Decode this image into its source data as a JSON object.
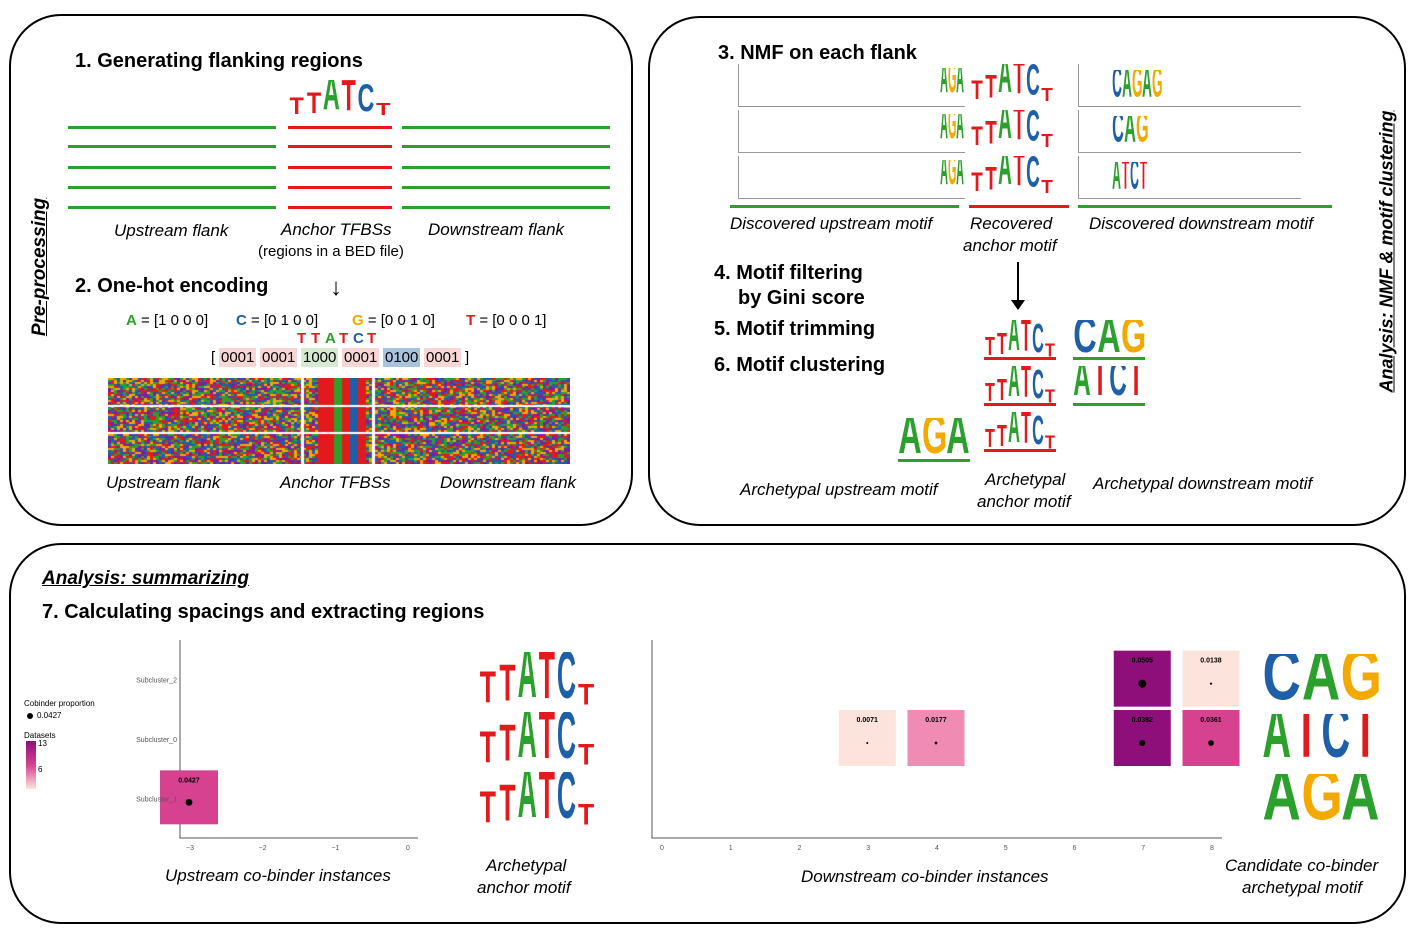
{
  "panels": {
    "preprocessing": {
      "side_label": "Pre-processing",
      "step1": "1. Generating flanking regions",
      "upstream_caption": "Upstream flank",
      "anchor_caption": "Anchor TFBSs",
      "anchor_sub": "(regions in a BED file)",
      "downstream_caption": "Downstream flank",
      "step2": "2. One-hot encoding",
      "arrow": "↓",
      "encodings": [
        {
          "letter": "A",
          "rest": " = [1 0 0 0]",
          "color": "#2ca02c"
        },
        {
          "letter": "C",
          "rest": " = [0 1 0 0]",
          "color": "#1f5fa8"
        },
        {
          "letter": "G",
          "rest": " = [0 0 1 0]",
          "color": "#f2a900"
        },
        {
          "letter": "T",
          "rest": " = [0 0 0 1]",
          "color": "#e31a1c"
        }
      ],
      "sequence": [
        "T",
        "T",
        "A",
        "T",
        "C",
        "T"
      ],
      "bracket_open": "[",
      "bracket_close": "]",
      "codes": [
        "0001",
        "0001",
        "1000",
        "0001",
        "0100",
        "0001"
      ],
      "heatmap_upstream": "Upstream flank",
      "heatmap_anchor": "Anchor TFBSs",
      "heatmap_downstream": "Downstream flank",
      "anchor_logo": "TTATCT"
    },
    "nmf": {
      "side_label": "Analysis: NMF & motif clustering",
      "step3": "3. NMF on each flank",
      "cap_up": "Discovered upstream motif",
      "cap_anchor_1": "Recovered",
      "cap_anchor_2": "anchor motif",
      "cap_down": "Discovered downstream motif",
      "step4a": "4. Motif filtering",
      "step4b": "by Gini score",
      "step5": "5. Motif trimming",
      "step6": "6. Motif clustering",
      "arch_up": "Archetypal upstream motif",
      "arch_anchor_1": "Archetypal",
      "arch_anchor_2": "anchor motif",
      "arch_down": "Archetypal downstream motif",
      "up_logos": [
        "AGA",
        "AGA",
        "AGA"
      ],
      "anchor_logos": [
        "TTATCT",
        "TTATCT",
        "TTATCT"
      ],
      "down_logos": [
        "CAGAG",
        "CAG",
        "ATCT"
      ],
      "clust_anchor": [
        "TTATCT",
        "TTATCT",
        "TTATCT"
      ],
      "clust_down": [
        "CAG",
        "ATCT"
      ],
      "clust_up": "AGA"
    },
    "summary": {
      "title": "Analysis: summarizing",
      "step7": "7. Calculating spacings and extracting regions",
      "legend_cobinder": "Cobinder proportion",
      "legend_cobinder_value": "0.0427",
      "legend_datasets": "Datasets",
      "legend_max": "13",
      "legend_mid": "6",
      "y_labels": [
        "Subcluster_2",
        "Subcluster_0",
        "Subcluster_1"
      ],
      "up_x_ticks": [
        "−3",
        "−2",
        "−1",
        "0"
      ],
      "down_x_ticks": [
        "0",
        "1",
        "2",
        "3",
        "4",
        "5",
        "6",
        "7",
        "8"
      ],
      "up_caption": "Upstream co-binder instances",
      "anchor_caption_1": "Archetypal",
      "anchor_caption_2": "anchor motif",
      "down_caption": "Downstream co-binder instances",
      "cand_caption_1": "Candidate co-binder",
      "cand_caption_2": "archetypal motif",
      "anchor_logos": [
        "TTATCT",
        "TTATCT",
        "TTATCT"
      ],
      "cand_logos": [
        "CAG",
        "ATCT",
        "AGA"
      ]
    }
  },
  "chart_data": [
    {
      "type": "scatter",
      "xlabel": "",
      "ylabel": "",
      "categories_y": [
        "Subcluster_2",
        "Subcluster_0",
        "Subcluster_1"
      ],
      "x_ticks": [
        -3,
        -2,
        -1,
        0
      ],
      "points": [
        {
          "x": -3,
          "y": "Subcluster_1",
          "proportion": 0.0427,
          "label": "0.0427",
          "color": "#d6428f"
        }
      ]
    },
    {
      "type": "scatter",
      "xlabel": "",
      "ylabel": "",
      "categories_y": [
        "Subcluster_2",
        "Subcluster_0",
        "Subcluster_1"
      ],
      "x_ticks": [
        0,
        1,
        2,
        3,
        4,
        5,
        6,
        7,
        8
      ],
      "points": [
        {
          "x": 7,
          "y": "Subcluster_2",
          "proportion": 0.0505,
          "label": "0.0505",
          "color": "#8e0f7a"
        },
        {
          "x": 8,
          "y": "Subcluster_2",
          "proportion": 0.0138,
          "label": "0.0138",
          "color": "#fce4dc"
        },
        {
          "x": 3,
          "y": "Subcluster_0",
          "proportion": 0.0071,
          "label": "0.0071",
          "color": "#fce4dc"
        },
        {
          "x": 4,
          "y": "Subcluster_0",
          "proportion": 0.0177,
          "label": "0.0177",
          "color": "#f08cb4"
        },
        {
          "x": 7,
          "y": "Subcluster_0",
          "proportion": 0.0382,
          "label": "0.0382",
          "color": "#8e0f7a"
        },
        {
          "x": 8,
          "y": "Subcluster_0",
          "proportion": 0.0361,
          "label": "0.0361",
          "color": "#d6428f"
        }
      ]
    }
  ]
}
